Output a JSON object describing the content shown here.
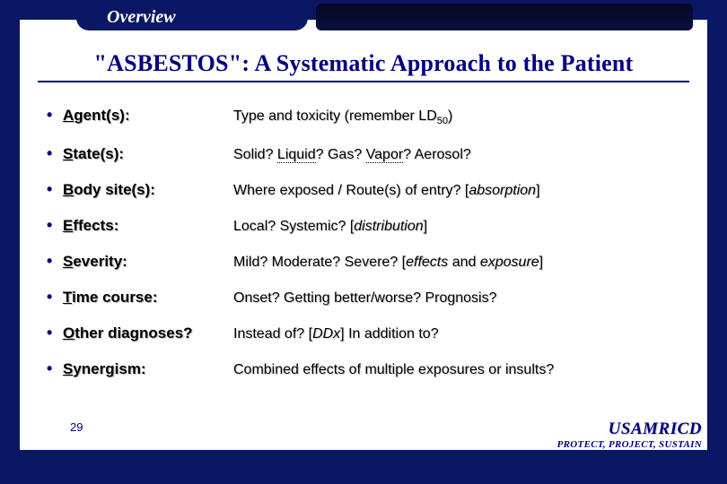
{
  "colors": {
    "slide_bg": "#0a1764",
    "page_bg": "#ffffff",
    "accent": "#000080"
  },
  "tab": {
    "label": "Overview"
  },
  "title": {
    "text": "\"ASBESTOS\": A Systematic Approach to the Patient"
  },
  "items": [
    {
      "letter": "A",
      "rest": "gent(s):",
      "desc_html": "Type and toxicity (remember LD<sub>50</sub>)"
    },
    {
      "letter": "S",
      "rest": "tate(s):",
      "desc_html": "Solid? <span class='udot'>Liquid</span>? Gas? <span class='udot'>Vapor</span>? Aerosol?"
    },
    {
      "letter": "B",
      "rest": "ody site(s):",
      "desc_html": "Where exposed / Route(s) of entry? [<em>absorption</em>]"
    },
    {
      "letter": "E",
      "rest": "ffects:",
      "desc_html": "Local? Systemic? [<em>distribution</em>]"
    },
    {
      "letter": "S",
      "rest": "everity:",
      "desc_html": "Mild? Moderate? Severe? [<em>effects</em> and <em>exposure</em>]"
    },
    {
      "letter": "T",
      "rest": "ime course:",
      "desc_html": "Onset? Getting better/worse? Prognosis?"
    },
    {
      "letter": "O",
      "rest": "ther diagnoses?",
      "desc_html": "Instead of? [<em>DDx</em>] In addition to?"
    },
    {
      "letter": "S",
      "rest": "ynergism:",
      "desc_html": "Combined effects of multiple exposures or insults?"
    }
  ],
  "slide_number": "29",
  "footer": {
    "org": "USAMRICD",
    "motto": "PROTECT, PROJECT, SUSTAIN"
  }
}
